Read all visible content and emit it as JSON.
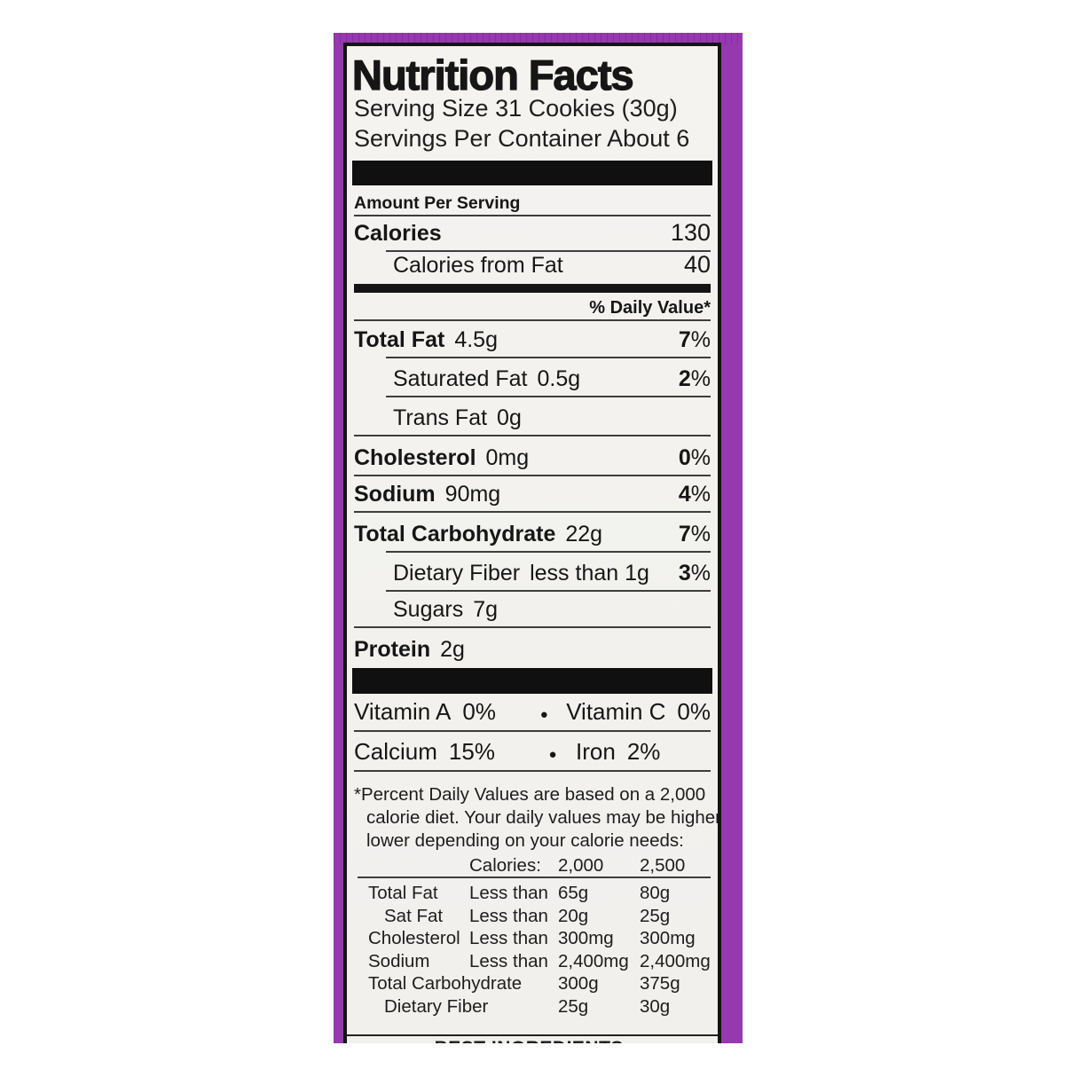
{
  "label": {
    "title": "Nutrition Facts",
    "serving_size": "Serving Size 31 Cookies (30g)",
    "servings_per_container": "Servings Per Container About 6",
    "amount_per_serving": "Amount Per Serving",
    "calories": {
      "name": "Calories",
      "value": "130"
    },
    "calories_from_fat": {
      "name": "Calories from Fat",
      "value": "40"
    },
    "daily_value_header": "% Daily Value*",
    "percent_sign": "%",
    "bullet": "●",
    "nutrients": [
      {
        "name": "Total Fat",
        "amount": "4.5g",
        "dv": "7"
      },
      {
        "name": "Saturated Fat",
        "amount": "0.5g",
        "dv": "2"
      },
      {
        "name": "Trans Fat",
        "amount": "0g"
      },
      {
        "name": "Cholesterol",
        "amount": "0mg",
        "dv": "0"
      },
      {
        "name": "Sodium",
        "amount": "90mg",
        "dv": "4"
      },
      {
        "name": "Total Carbohydrate",
        "amount": "22g",
        "dv": "7"
      },
      {
        "name": "Dietary Fiber",
        "amount": "less than 1g",
        "dv": "3"
      },
      {
        "name": "Sugars",
        "amount": "7g"
      },
      {
        "name": "Protein",
        "amount": "2g"
      }
    ],
    "vitamins": [
      {
        "n1": "Vitamin A",
        "v1": "0%",
        "n2": "Vitamin C",
        "v2": "0%"
      },
      {
        "n1": "Calcium",
        "v1": "15%",
        "n2": "Iron",
        "v2": "2%"
      }
    ],
    "footnote": {
      "line1": "*Percent Daily Values are based on a 2,000",
      "line2": "calorie diet. Your daily values may be higher or",
      "line3": "lower depending on your calorie needs:",
      "calories_label": "Calories:",
      "calories_2000": "2,000",
      "calories_2500": "2,500"
    },
    "footnote_table": [
      {
        "name": "Total Fat",
        "cond": "Less than",
        "v2000": "65g",
        "v2500": "80g"
      },
      {
        "name": "Sat Fat",
        "cond": "Less than",
        "v2000": "20g",
        "v2500": "25g"
      },
      {
        "name": "Cholesterol",
        "cond": "Less than",
        "v2000": "300mg",
        "v2500": "300mg"
      },
      {
        "name": "Sodium",
        "cond": "Less than",
        "v2000": "2,400mg",
        "v2500": "2,400mg"
      },
      {
        "name": "Total Carbohydrate",
        "cond": "",
        "v2000": "300g",
        "v2500": "375g"
      },
      {
        "name": "Dietary Fiber",
        "cond": "",
        "v2000": "25g",
        "v2500": "30g"
      }
    ],
    "ingredients_header": "BEST INGREDIENTS:"
  }
}
